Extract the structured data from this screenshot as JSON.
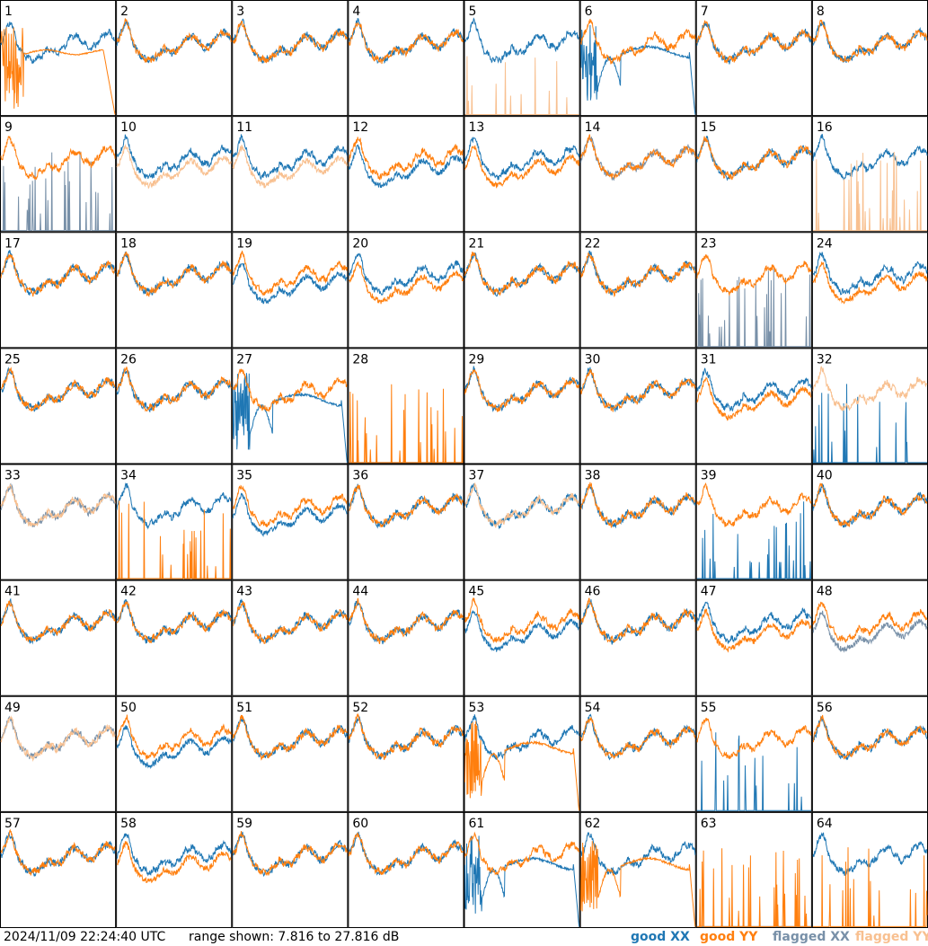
{
  "footer": {
    "timestamp": "2024/11/09 22:24:40 UTC",
    "range": "range shown: 7.816 to 27.816 dB"
  },
  "legend": [
    {
      "label": "good XX",
      "color": "#1f77b4"
    },
    {
      "label": "good YY",
      "color": "#ff7f0e"
    },
    {
      "label": "flagged XX",
      "color": "#7890a8"
    },
    {
      "label": "flagged YY",
      "color": "#f8c090"
    }
  ],
  "chart_data": {
    "type": "line",
    "panels": 64,
    "columns": 8,
    "rows": 8,
    "ylim": [
      7.816,
      27.816
    ],
    "unit": "dB",
    "series": [
      "XX",
      "YY"
    ],
    "flags": {
      "flagged_xx": [
        9,
        14,
        23,
        33,
        48,
        49
      ],
      "flagged_yy": [
        5,
        10,
        11,
        16,
        32,
        33,
        37,
        49
      ]
    },
    "panel_patterns": {
      "1": [
        "normal",
        "noisy_drop"
      ],
      "2": [
        "normal",
        "normal"
      ],
      "3": [
        "normal",
        "normal"
      ],
      "4": [
        "normal",
        "normal"
      ],
      "5": [
        "normal",
        "spikes"
      ],
      "6": [
        "dip",
        "normal"
      ],
      "7": [
        "normal",
        "normal"
      ],
      "8": [
        "normal",
        "normal"
      ],
      "9": [
        "spikes",
        "normal"
      ],
      "10": [
        "normal",
        "low"
      ],
      "11": [
        "normal",
        "low"
      ],
      "12": [
        "low",
        "normal"
      ],
      "13": [
        "normal",
        "low"
      ],
      "14": [
        "normal",
        "normal"
      ],
      "15": [
        "normal",
        "normal"
      ],
      "16": [
        "normal",
        "spikes"
      ],
      "17": [
        "normal",
        "normal"
      ],
      "18": [
        "normal",
        "normal"
      ],
      "19": [
        "low",
        "normal"
      ],
      "20": [
        "normal",
        "low"
      ],
      "21": [
        "normal",
        "normal"
      ],
      "22": [
        "normal",
        "normal"
      ],
      "23": [
        "spikes",
        "normal"
      ],
      "24": [
        "normal",
        "low"
      ],
      "25": [
        "normal",
        "normal"
      ],
      "26": [
        "normal",
        "normal"
      ],
      "27": [
        "dip",
        "normal"
      ],
      "28": [
        "flat",
        "spikes"
      ],
      "29": [
        "normal",
        "normal"
      ],
      "30": [
        "normal",
        "normal"
      ],
      "31": [
        "normal",
        "low"
      ],
      "32": [
        "spikes",
        "normal"
      ],
      "33": [
        "normal",
        "normal"
      ],
      "34": [
        "normal",
        "spikes"
      ],
      "35": [
        "low",
        "normal"
      ],
      "36": [
        "normal",
        "normal"
      ],
      "37": [
        "normal",
        "normal"
      ],
      "38": [
        "normal",
        "normal"
      ],
      "39": [
        "spikes",
        "normal"
      ],
      "40": [
        "normal",
        "normal"
      ],
      "41": [
        "normal",
        "normal"
      ],
      "42": [
        "normal",
        "normal"
      ],
      "43": [
        "normal",
        "normal"
      ],
      "44": [
        "normal",
        "normal"
      ],
      "45": [
        "low",
        "normal"
      ],
      "46": [
        "normal",
        "normal"
      ],
      "47": [
        "normal",
        "low"
      ],
      "48": [
        "low",
        "normal"
      ],
      "49": [
        "normal",
        "normal"
      ],
      "50": [
        "low",
        "normal"
      ],
      "51": [
        "normal",
        "normal"
      ],
      "52": [
        "normal",
        "normal"
      ],
      "53": [
        "normal",
        "dip"
      ],
      "54": [
        "normal",
        "normal"
      ],
      "55": [
        "spikes",
        "normal"
      ],
      "56": [
        "normal",
        "normal"
      ],
      "57": [
        "normal",
        "normal"
      ],
      "58": [
        "normal",
        "low"
      ],
      "59": [
        "normal",
        "normal"
      ],
      "60": [
        "normal",
        "normal"
      ],
      "61": [
        "dip",
        "normal"
      ],
      "62": [
        "normal",
        "dip"
      ],
      "63": [
        "flat",
        "spikes"
      ],
      "64": [
        "normal",
        "spikes"
      ]
    }
  }
}
